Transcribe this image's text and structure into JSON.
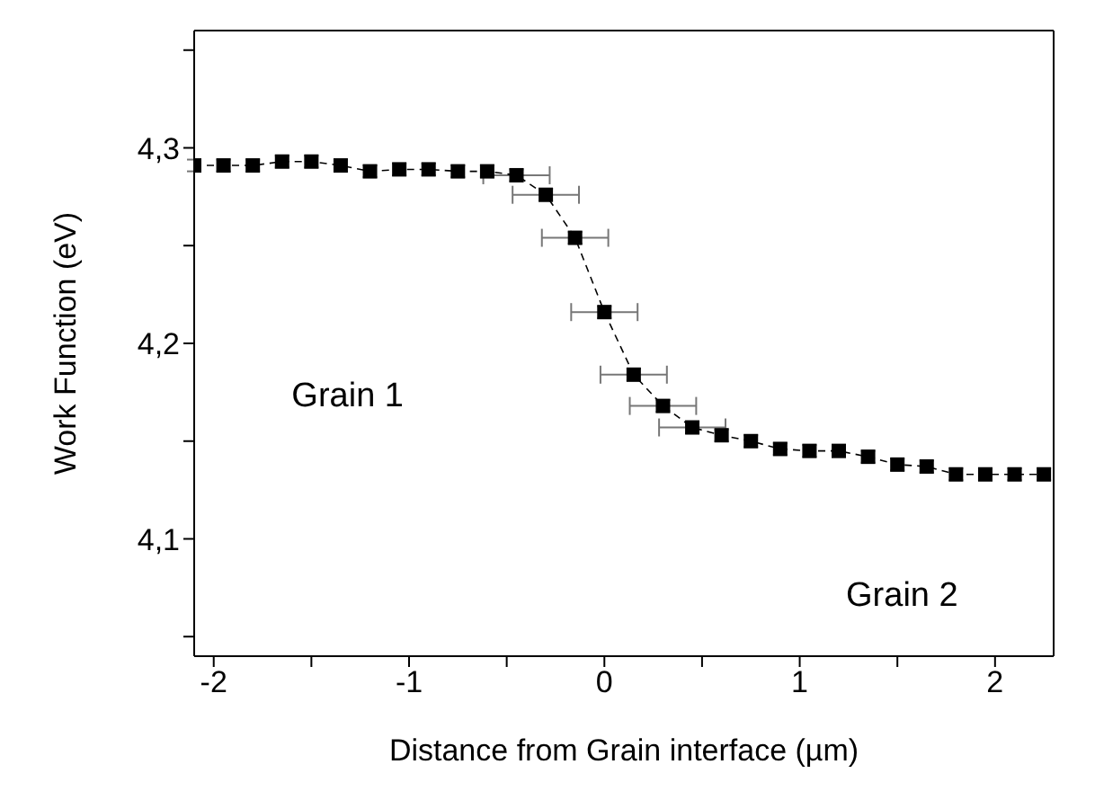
{
  "chart_data": {
    "type": "line",
    "xlabel": "Distance from Grain interface (µm)",
    "ylabel": "Work Function (eV)",
    "x": [
      -2.1,
      -1.95,
      -1.8,
      -1.65,
      -1.5,
      -1.35,
      -1.2,
      -1.05,
      -0.9,
      -0.75,
      -0.6,
      -0.45,
      -0.3,
      -0.15,
      0,
      0.15,
      0.3,
      0.45,
      0.6,
      0.75,
      0.9,
      1.05,
      1.2,
      1.35,
      1.5,
      1.65,
      1.8,
      1.95,
      2.1,
      2.25
    ],
    "series": [
      {
        "color": "#000000",
        "line_style": "dashed",
        "marker": "square",
        "values": [
          4.291,
          4.291,
          4.291,
          4.293,
          4.293,
          4.291,
          4.288,
          4.289,
          4.289,
          4.288,
          4.288,
          4.286,
          4.276,
          4.254,
          4.216,
          4.184,
          4.168,
          4.157,
          4.153,
          4.15,
          4.146,
          4.145,
          4.145,
          4.142,
          4.138,
          4.137,
          4.133,
          4.133,
          4.133,
          4.133
        ],
        "errors": [
          0.003,
          0.003,
          0.003,
          0.003,
          0.003,
          0.003,
          0.003,
          0.003,
          0.003,
          0.003,
          0.003,
          0.003,
          0.003,
          0.003,
          0.003,
          0.003,
          0.003,
          0.003,
          0.003,
          0.003,
          0.003,
          0.003,
          0.003,
          0.003,
          0.003,
          0.003,
          0.003,
          0.003,
          0.003,
          0.003
        ],
        "xerrors": [
          null,
          null,
          null,
          null,
          null,
          null,
          null,
          null,
          null,
          null,
          null,
          0.17,
          0.17,
          0.17,
          0.17,
          0.17,
          0.17,
          0.17,
          null,
          null,
          null,
          null,
          null,
          null,
          null,
          null,
          null,
          null,
          null,
          null
        ]
      }
    ],
    "xlim": [
      -2.1,
      2.3
    ],
    "xticks": [
      -2,
      {
        "value": -1.5,
        "label": null
      },
      -1,
      {
        "value": -0.5,
        "label": null
      },
      0,
      {
        "value": 0.5,
        "label": null
      },
      1,
      {
        "value": 1.5,
        "label": null
      },
      2
    ],
    "ylim": [
      4.04,
      4.36
    ],
    "yticks": [
      {
        "value": 4.05,
        "label": null
      },
      {
        "value": 4.1,
        "label": "4,1"
      },
      {
        "value": 4.15,
        "label": null
      },
      {
        "value": 4.2,
        "label": "4,2"
      },
      {
        "value": 4.25,
        "label": null
      },
      {
        "value": 4.3,
        "label": "4,3"
      },
      {
        "value": 4.35,
        "label": null
      }
    ],
    "grid": false,
    "legend": false,
    "annotations": [
      "Grain 1",
      "Grain 2"
    ]
  }
}
